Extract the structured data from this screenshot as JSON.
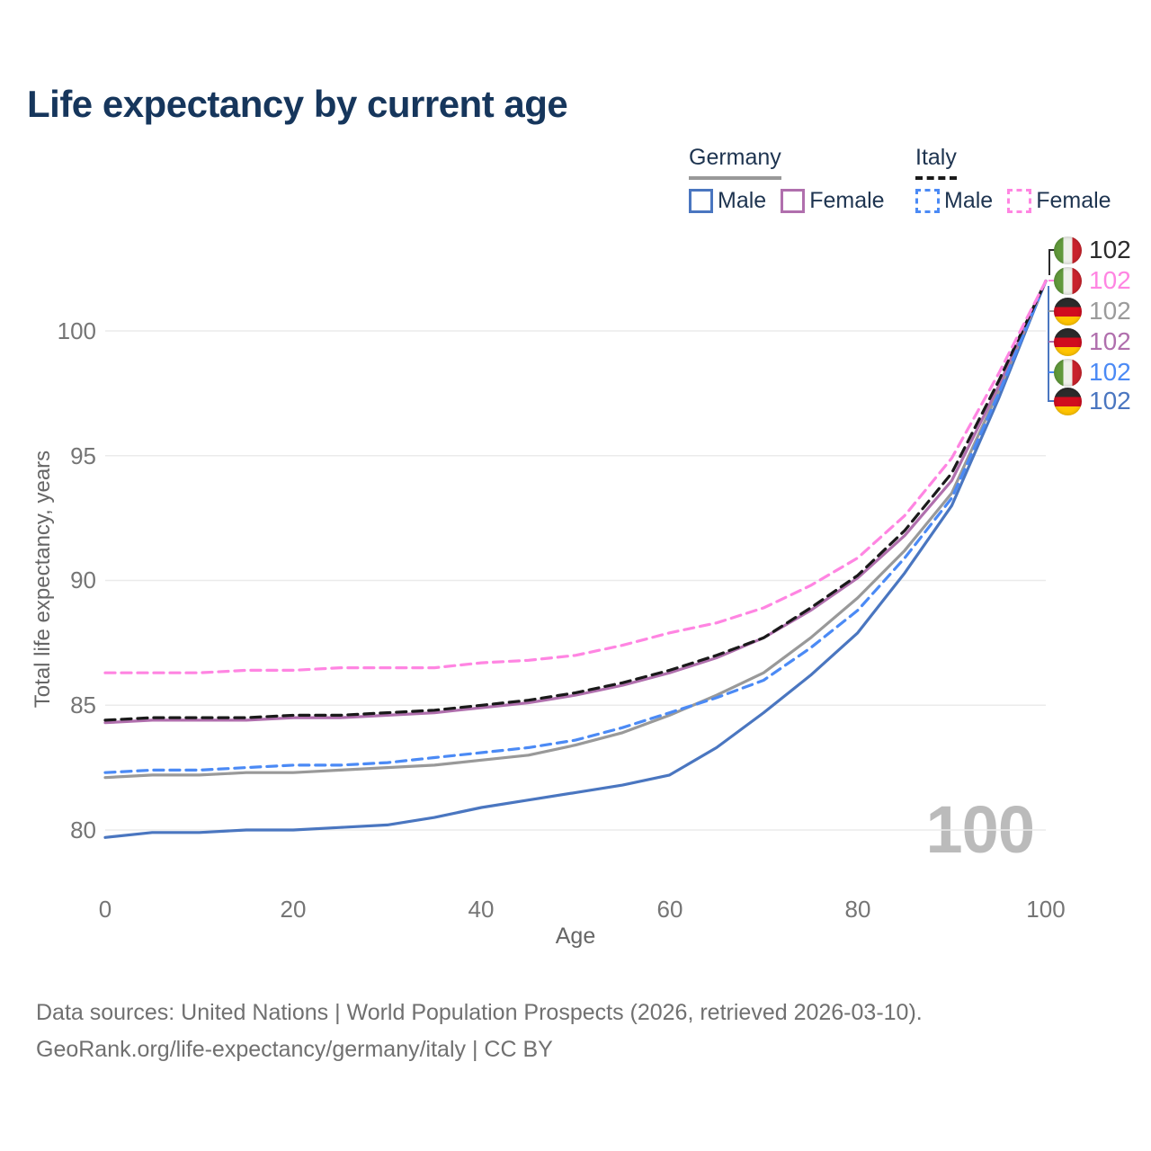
{
  "title": "Life expectancy by current age",
  "legend": {
    "groups": [
      {
        "label": "Germany",
        "items": [
          {
            "label": "Male"
          },
          {
            "label": "Female"
          }
        ]
      },
      {
        "label": "Italy",
        "items": [
          {
            "label": "Male"
          },
          {
            "label": "Female"
          }
        ]
      }
    ]
  },
  "age_counter": "100",
  "end_labels": [
    {
      "flag": "italy",
      "series": "Italy Both sexes",
      "value": "102",
      "color": "#2b2b2b"
    },
    {
      "flag": "italy",
      "series": "Italy Female",
      "value": "102",
      "color": "#ff85e2"
    },
    {
      "flag": "germany",
      "series": "Germany Both sexes",
      "value": "102",
      "color": "#9b9b9b"
    },
    {
      "flag": "germany",
      "series": "Germany Female",
      "value": "102",
      "color": "#b06fad"
    },
    {
      "flag": "italy",
      "series": "Italy Male",
      "value": "102",
      "color": "#4b8af5"
    },
    {
      "flag": "germany",
      "series": "Germany Male",
      "value": "102",
      "color": "#4a76c0"
    }
  ],
  "footer": {
    "line1": "Data sources: United Nations | World Population Prospects (2026, retrieved 2026-03-10).",
    "line2": "GeoRank.org/life-expectancy/germany/italy | CC BY"
  },
  "chart_data": {
    "type": "line",
    "title": "Life expectancy by current age",
    "xlabel": "Age",
    "ylabel": "Total life expectancy, years",
    "xlim": [
      0,
      100
    ],
    "ylim": [
      79,
      102.5
    ],
    "xticks": [
      0,
      20,
      40,
      60,
      80,
      100
    ],
    "yticks": [
      80,
      85,
      90,
      95,
      100
    ],
    "grid": "horizontal",
    "legend_position": "top-right",
    "x": [
      0,
      5,
      10,
      15,
      20,
      25,
      30,
      35,
      40,
      45,
      50,
      55,
      60,
      65,
      70,
      75,
      80,
      85,
      90,
      95,
      100
    ],
    "series": [
      {
        "name": "Germany Male",
        "color": "#4a76c0",
        "dash": "solid",
        "values": [
          79.7,
          79.9,
          79.9,
          80.0,
          80.0,
          80.1,
          80.2,
          80.5,
          80.9,
          81.2,
          81.5,
          81.8,
          82.2,
          83.3,
          84.7,
          86.2,
          87.9,
          90.3,
          93.0,
          97.3,
          102
        ]
      },
      {
        "name": "Germany Both sexes",
        "color": "#999999",
        "dash": "solid",
        "values": [
          82.1,
          82.2,
          82.2,
          82.3,
          82.3,
          82.4,
          82.5,
          82.6,
          82.8,
          83.0,
          83.4,
          83.9,
          84.6,
          85.4,
          86.3,
          87.7,
          89.3,
          91.2,
          93.5,
          97.6,
          102
        ]
      },
      {
        "name": "Germany Female",
        "color": "#b06fad",
        "dash": "solid",
        "values": [
          84.3,
          84.4,
          84.4,
          84.4,
          84.5,
          84.5,
          84.6,
          84.7,
          84.9,
          85.1,
          85.4,
          85.8,
          86.3,
          86.9,
          87.7,
          88.8,
          90.1,
          91.8,
          94.0,
          97.8,
          102
        ]
      },
      {
        "name": "Italy Male",
        "color": "#4b8af5",
        "dash": "dashed",
        "values": [
          82.3,
          82.4,
          82.4,
          82.5,
          82.6,
          82.6,
          82.7,
          82.9,
          83.1,
          83.3,
          83.6,
          84.1,
          84.7,
          85.3,
          86.0,
          87.3,
          88.8,
          90.9,
          93.3,
          97.5,
          102
        ]
      },
      {
        "name": "Italy Both sexes",
        "color": "#1a1a1a",
        "dash": "dashed",
        "values": [
          84.4,
          84.5,
          84.5,
          84.5,
          84.6,
          84.6,
          84.7,
          84.8,
          85.0,
          85.2,
          85.5,
          85.9,
          86.4,
          87.0,
          87.7,
          88.9,
          90.2,
          92.0,
          94.3,
          98.0,
          102
        ]
      },
      {
        "name": "Italy Female",
        "color": "#ff85e2",
        "dash": "dashed",
        "values": [
          86.3,
          86.3,
          86.3,
          86.4,
          86.4,
          86.5,
          86.5,
          86.5,
          86.7,
          86.8,
          87.0,
          87.4,
          87.9,
          88.3,
          88.9,
          89.8,
          90.9,
          92.6,
          94.9,
          98.3,
          102
        ]
      }
    ]
  }
}
